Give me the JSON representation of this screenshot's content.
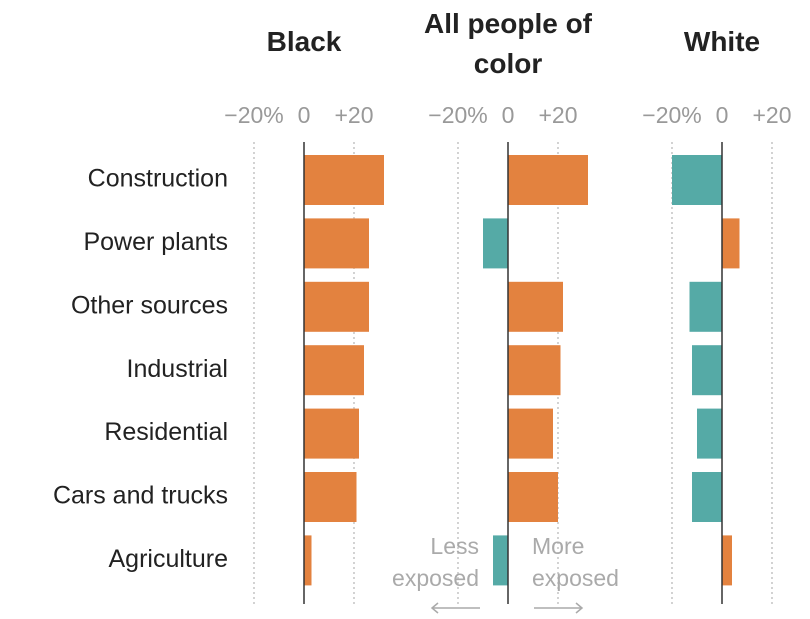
{
  "chart_data": [
    {
      "type": "bar",
      "orientation": "horizontal",
      "title": "Black",
      "categories": [
        "Construction",
        "Power plants",
        "Other sources",
        "Industrial",
        "Residential",
        "Cars and trucks",
        "Agriculture"
      ],
      "values": [
        32,
        26,
        26,
        24,
        22,
        21,
        3
      ],
      "positive_color": "#e3823f",
      "negative_color": "#55aaa6",
      "xlim": [
        -22,
        30
      ],
      "xticks": [
        {
          "value": -20,
          "label": "−20%"
        },
        0,
        {
          "value": 20,
          "label": "+20"
        }
      ],
      "grid": true
    },
    {
      "type": "bar",
      "orientation": "horizontal",
      "title": "All people of color",
      "values": [
        32,
        -10,
        22,
        21,
        18,
        20,
        -6
      ],
      "positive_color": "#e3823f",
      "negative_color": "#55aaa6",
      "xlim": [
        -22,
        30
      ],
      "xticks": [
        {
          "value": -20,
          "label": "−20%"
        },
        0,
        {
          "value": 20,
          "label": "+20"
        }
      ],
      "grid": true,
      "annotations": [
        [
          "Less",
          "exposed"
        ],
        [
          "More",
          "exposed"
        ]
      ]
    },
    {
      "type": "bar",
      "orientation": "horizontal",
      "title": "White",
      "values": [
        -20,
        7,
        -13,
        -12,
        -10,
        -12,
        4
      ],
      "positive_color": "#e3823f",
      "negative_color": "#55aaa6",
      "xlim": [
        -22,
        30
      ],
      "xticks": [
        {
          "value": -20,
          "label": "−20%"
        },
        0,
        {
          "value": 20,
          "label": "+20"
        }
      ],
      "grid": true
    }
  ]
}
